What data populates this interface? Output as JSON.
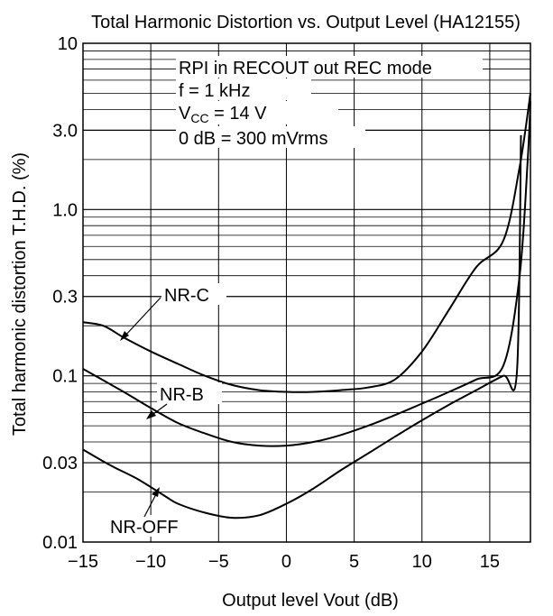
{
  "chart_data": {
    "type": "line",
    "title": "Total Harmonic Distortion vs. Output Level (HA12155)",
    "xlabel": "Output level Vout (dB)",
    "ylabel": "Total harmonic distortion T.H.D. (%)",
    "xlim": [
      -15,
      18
    ],
    "ylim": [
      0.01,
      10
    ],
    "yscale": "log",
    "grid": true,
    "x_ticks": [
      {
        "value": -15,
        "label": "−15"
      },
      {
        "value": -10,
        "label": "−10"
      },
      {
        "value": -5,
        "label": "−5"
      },
      {
        "value": 0,
        "label": "0"
      },
      {
        "value": 5,
        "label": "5"
      },
      {
        "value": 10,
        "label": "10"
      },
      {
        "value": 15,
        "label": "15"
      }
    ],
    "y_ticks": [
      {
        "value": 0.01,
        "label": "0.01"
      },
      {
        "value": 0.03,
        "label": "0.03"
      },
      {
        "value": 0.1,
        "label": "0.1"
      },
      {
        "value": 0.3,
        "label": "0.3"
      },
      {
        "value": 1.0,
        "label": "1.0"
      },
      {
        "value": 3.0,
        "label": "3.0"
      },
      {
        "value": 10,
        "label": "10"
      }
    ],
    "annotations": {
      "line1": "RPI in RECOUT out REC mode",
      "line2": "f = 1 kHz",
      "line3_prefix": "V",
      "line3_sub": "CC",
      "line3_suffix": " = 14 V",
      "line4": "0 dB = 300 mVrms"
    },
    "series": [
      {
        "name": "NR-C",
        "x": [
          -15,
          -13.5,
          -12,
          -10,
          -8,
          -6,
          -4,
          -2,
          0,
          2,
          4,
          6,
          8,
          10,
          12,
          14,
          16,
          17.2,
          18
        ],
        "y": [
          0.21,
          0.2,
          0.17,
          0.14,
          0.118,
          0.1,
          0.088,
          0.082,
          0.08,
          0.08,
          0.082,
          0.085,
          0.095,
          0.14,
          0.25,
          0.45,
          0.65,
          1.8,
          5.0
        ]
      },
      {
        "name": "NR-B",
        "x": [
          -15,
          -12,
          -10,
          -8,
          -6,
          -4,
          -2,
          0,
          2,
          4,
          6,
          8,
          10,
          12,
          14,
          16,
          17.2,
          17.8,
          18
        ],
        "y": [
          0.11,
          0.08,
          0.064,
          0.052,
          0.045,
          0.04,
          0.038,
          0.038,
          0.04,
          0.044,
          0.05,
          0.058,
          0.068,
          0.08,
          0.095,
          0.115,
          0.4,
          2.0,
          4.5
        ]
      },
      {
        "name": "NR-OFF",
        "x": [
          -15,
          -13,
          -11,
          -9,
          -8,
          -6,
          -4,
          -2,
          0,
          2,
          4,
          6,
          8,
          10,
          12,
          14,
          16,
          17,
          17.3
        ],
        "y": [
          0.036,
          0.029,
          0.024,
          0.019,
          0.017,
          0.015,
          0.014,
          0.0145,
          0.017,
          0.021,
          0.027,
          0.034,
          0.043,
          0.054,
          0.067,
          0.082,
          0.1,
          0.105,
          2.8
        ]
      }
    ],
    "labels": {
      "nr_c": "NR-C",
      "nr_b": "NR-B",
      "nr_off": "NR-OFF"
    }
  }
}
